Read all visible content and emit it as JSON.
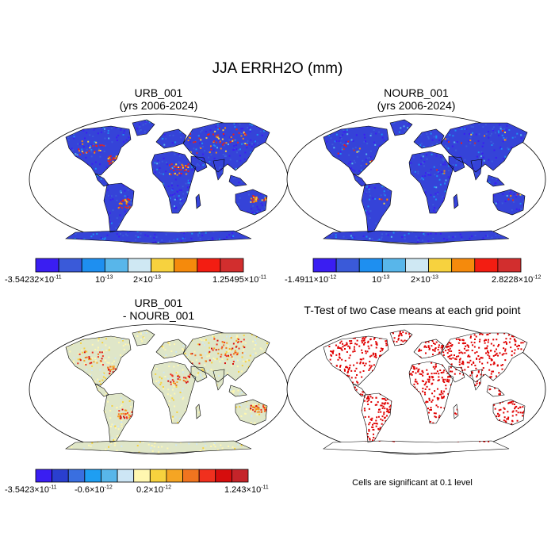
{
  "figure": {
    "title": "JJA ERRH2O (mm)",
    "panels": [
      {
        "id": "urb",
        "title_line1": "URB_001",
        "title_line2": "(yrs 2006-2024)",
        "colors": [
          "#3a1ef2",
          "#3a5ad9",
          "#1e8ff0",
          "#58b6ea",
          "#cfe8f3",
          "#f7d23e",
          "#f58a0c",
          "#f31d12",
          "#d22e2e"
        ],
        "labels": {
          "min": "-3.54232×10",
          "min_exp": "-11",
          "l2": "10",
          "l2_exp": "-13",
          "l3": "2×10",
          "l3_exp": "-13",
          "max": "1.25495×10",
          "max_exp": "-11"
        }
      },
      {
        "id": "nourb",
        "title_line1": "NOURB_001",
        "title_line2": "(yrs 2006-2024)",
        "colors": [
          "#3a1ef2",
          "#3a5ad9",
          "#1e8ff0",
          "#58b6ea",
          "#cfe8f3",
          "#f7d23e",
          "#f58a0c",
          "#f31d12",
          "#d22e2e"
        ],
        "labels": {
          "min": "-1.4911×10",
          "min_exp": "-12",
          "l2": "10",
          "l2_exp": "-13",
          "l3": "2×10",
          "l3_exp": "-13",
          "max": "2.8228×10",
          "max_exp": "-12"
        }
      },
      {
        "id": "diff",
        "title_line1": "URB_001",
        "title_line2": "- NOURB_001",
        "colors": [
          "#3a1ef2",
          "#2a3fcf",
          "#3a6fe0",
          "#1e9ef2",
          "#58b6ea",
          "#cde6f5",
          "#fff7b0",
          "#f7d23e",
          "#f5a523",
          "#f0741f",
          "#f0301e",
          "#d60d0d",
          "#c5242a"
        ],
        "labels": {
          "min": "-3.5423×10",
          "min_exp": "-11",
          "l2": "-0.6×10",
          "l2_exp": "-12",
          "l3": "0.2×10",
          "l3_exp": "-12",
          "max": "1.243×10",
          "max_exp": "-11"
        }
      },
      {
        "id": "ttest",
        "title_line1": "T-Test of two Case means at each grid point",
        "note": "Cells are significant at 0.1 level",
        "sig_color": "#e00000"
      }
    ],
    "map_background": {
      "urb": "#3543d8",
      "nourb": "#3543d8",
      "diff": "#dfe6c8",
      "ttest": "#ffffff"
    }
  }
}
